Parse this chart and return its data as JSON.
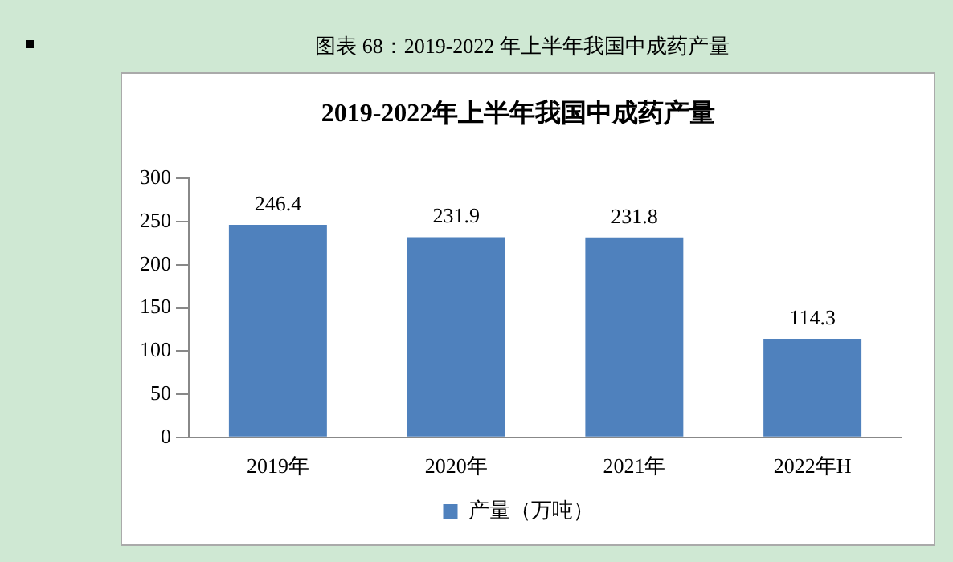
{
  "chart_data": {
    "type": "bar",
    "title": "图表 68：2019-2022 年上半年我国中成药产量",
    "subtitle": "2019-2022年上半年我国中成药产量",
    "categories": [
      "2019年",
      "2020年",
      "2021年",
      "2022年H"
    ],
    "series": [
      {
        "name": "产量（万吨）",
        "color": "#4f81bd",
        "values": [
          246.4,
          231.9,
          231.8,
          114.3
        ]
      }
    ],
    "ylim": [
      0,
      300
    ],
    "yticks": [
      0,
      50,
      100,
      150,
      200,
      250,
      300
    ],
    "grid": false,
    "legend": "bottom",
    "data_labels": true
  }
}
